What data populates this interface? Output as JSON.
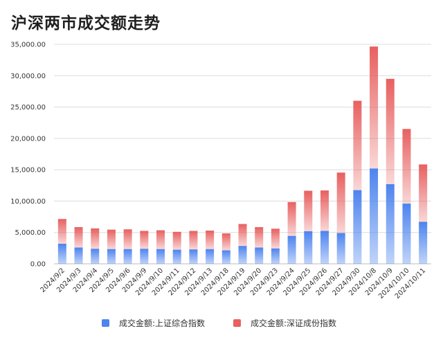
{
  "title": "沪深两市成交额走势",
  "chart_data": {
    "type": "bar",
    "stacked": true,
    "title": "沪深两市成交额走势",
    "categories": [
      "2024/9/2",
      "2024/9/3",
      "2024/9/4",
      "2024/9/5",
      "2024/9/6",
      "2024/9/9",
      "2024/9/10",
      "2024/9/11",
      "2024/9/12",
      "2024/9/13",
      "2024/9/18",
      "2024/9/19",
      "2024/9/20",
      "2024/9/23",
      "2024/9/24",
      "2024/9/25",
      "2024/9/26",
      "2024/9/27",
      "2024/9/30",
      "2024/10/8",
      "2024/10/9",
      "2024/10/10",
      "2024/10/11"
    ],
    "series": [
      {
        "name": "成交金额:上证综合指数",
        "color": "#4d84ee",
        "values": [
          3200,
          2600,
          2400,
          2350,
          2350,
          2400,
          2350,
          2250,
          2300,
          2350,
          2150,
          2850,
          2600,
          2450,
          4450,
          5200,
          5250,
          4900,
          11750,
          15200,
          12700,
          9600,
          6700
        ]
      },
      {
        "name": "成交金额:深证成份指数",
        "color": "#e86060",
        "values": [
          3950,
          3250,
          3250,
          3100,
          3150,
          2850,
          3000,
          2850,
          2950,
          2950,
          2700,
          3500,
          3250,
          3150,
          5400,
          6450,
          6450,
          9650,
          14250,
          19450,
          16800,
          11900,
          9150
        ]
      }
    ],
    "ylim": [
      0,
      35000
    ],
    "yticks": [
      "0.00",
      "5,000.00",
      "10,000.00",
      "15,000.00",
      "20,000.00",
      "25,000.00",
      "30,000.00",
      "35,000.00"
    ],
    "grid": true,
    "legend_position": "bottom"
  }
}
